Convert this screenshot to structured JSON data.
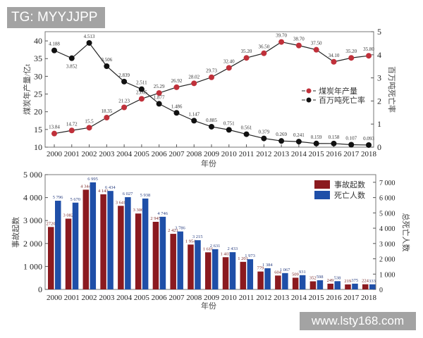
{
  "watermarks": {
    "top_left": "TG: MYYJJPP",
    "bottom_right": "www.lsty168.com"
  },
  "chart_data": [
    {
      "type": "line",
      "x": [
        2000,
        2001,
        2002,
        2003,
        2004,
        2005,
        2006,
        2007,
        2008,
        2009,
        2010,
        2011,
        2012,
        2013,
        2014,
        2015,
        2016,
        2017,
        2018
      ],
      "xlabel": "年份",
      "ylabel_left": "煤炭年产量/亿t",
      "ylabel_right": "百万吨死亡率",
      "ylim_left": [
        10,
        42.6
      ],
      "yticks_left": [
        10,
        15,
        20,
        25,
        30,
        35,
        40
      ],
      "ylim_right": [
        0,
        5
      ],
      "yticks_right": [
        0,
        1,
        2,
        3,
        4,
        5
      ],
      "legend_position": "center-right",
      "series": [
        {
          "name": "煤炭年产量",
          "axis": "left",
          "color": "#c0303a",
          "values": [
            13.84,
            14.72,
            15.5,
            18.35,
            21.23,
            23.65,
            25.29,
            26.92,
            28.02,
            29.73,
            32.4,
            35.2,
            36.5,
            39.7,
            38.7,
            37.5,
            34.1,
            35.2,
            35.8
          ],
          "labels": [
            "13.84",
            "14.72",
            "15.5",
            "18.35",
            "21.23",
            "23.65",
            "25.29",
            "26.92",
            "28.02",
            "29.73",
            "32.40",
            "35.20",
            "36.50",
            "39.70",
            "38.70",
            "37.50",
            "34.10",
            "35.20",
            "35.80"
          ]
        },
        {
          "name": "百万吨死亡率",
          "axis": "right",
          "color": "#111111",
          "values": [
            4.188,
            3.852,
            4.513,
            3.506,
            2.839,
            2.511,
            1.877,
            1.486,
            1.147,
            0.885,
            0.751,
            0.561,
            0.379,
            0.269,
            0.241,
            0.159,
            0.158,
            0.107,
            0.093
          ],
          "labels": [
            "4.188",
            "3.852",
            "4.513",
            "3.506",
            "2.839",
            "2.511",
            "1.877",
            "1.486",
            "1.147",
            "0.885",
            "0.751",
            "0.561",
            "0.379",
            "0.269",
            "0.241",
            "0.159",
            "0.158",
            "0.107",
            "0.093"
          ]
        }
      ]
    },
    {
      "type": "bar",
      "categories": [
        "2000",
        "2001",
        "2002",
        "2003",
        "2004",
        "2005",
        "2006",
        "2007",
        "2008",
        "2009",
        "2010",
        "2011",
        "2012",
        "2013",
        "2014",
        "2015",
        "2016",
        "2017",
        "2018"
      ],
      "xlabel": "年份",
      "ylabel_left": "事故起数",
      "ylabel_right": "总死亡人数",
      "ylim_left": [
        0,
        5000
      ],
      "yticks_left": [
        "0",
        "1 000",
        "2 000",
        "3 000",
        "4 000",
        "5 000"
      ],
      "ylim_right": [
        0,
        7500
      ],
      "yticks_right": [
        "0",
        "1 000",
        "2 000",
        "3 000",
        "4 000",
        "5 000",
        "6 000",
        "7 000"
      ],
      "legend_position": "top-right",
      "series": [
        {
          "name": "事故起数",
          "axis": "left",
          "color": "#8b1a1f",
          "values": [
            2720,
            3082,
            4344,
            4143,
            3641,
            3306,
            2945,
            2421,
            1954,
            1616,
            1403,
            1201,
            779,
            604,
            509,
            352,
            249,
            219,
            224
          ],
          "labels": [
            "2720",
            "3 082",
            "4 344",
            "4 143",
            "3 641",
            "3 306",
            "2 945",
            "2 421",
            "1 954",
            "1 616",
            "1 403",
            "1 201",
            "779",
            "604",
            "509",
            "352",
            "249",
            "219",
            "224"
          ]
        },
        {
          "name": "死亡人数",
          "axis": "right",
          "color": "#1f4fa8",
          "values": [
            5796,
            5670,
            6995,
            6434,
            6027,
            5938,
            4746,
            3786,
            3215,
            2631,
            2433,
            1973,
            1384,
            1067,
            931,
            598,
            538,
            375,
            333
          ],
          "labels": [
            "5 796",
            "5 670",
            "6 995",
            "6 434",
            "6 027",
            "5 938",
            "4 746",
            "3 786",
            "3 215",
            "2 631",
            "2 433",
            "1 973",
            "1 384",
            "1 067",
            "931",
            "598",
            "538",
            "375",
            "333"
          ]
        }
      ]
    }
  ]
}
